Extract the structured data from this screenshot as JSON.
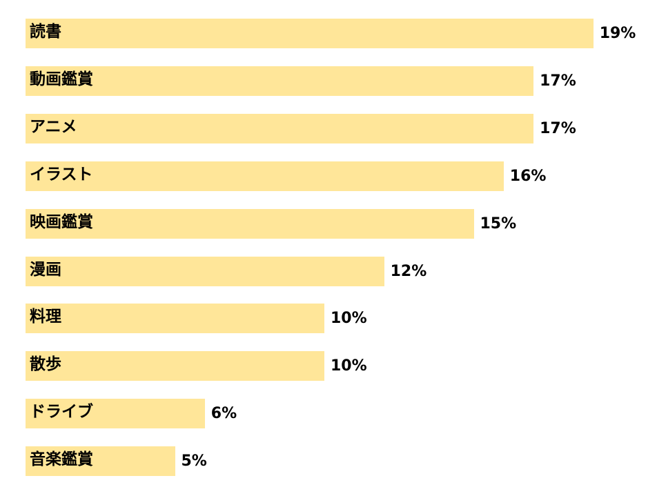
{
  "chart_data": {
    "type": "bar",
    "orientation": "horizontal",
    "categories": [
      "読書",
      "動画鑑賞",
      "アニメ",
      "イラスト",
      "映画鑑賞",
      "漫画",
      "料理",
      "散歩",
      "ドライブ",
      "音楽鑑賞"
    ],
    "values": [
      19,
      17,
      17,
      16,
      15,
      12,
      10,
      10,
      6,
      5
    ],
    "value_labels": [
      "19%",
      "17%",
      "17%",
      "16%",
      "15%",
      "12%",
      "10%",
      "10%",
      "6%",
      "5%"
    ],
    "value_unit": "%",
    "bar_color": "#ffe699",
    "grid": false,
    "legend": "none"
  }
}
